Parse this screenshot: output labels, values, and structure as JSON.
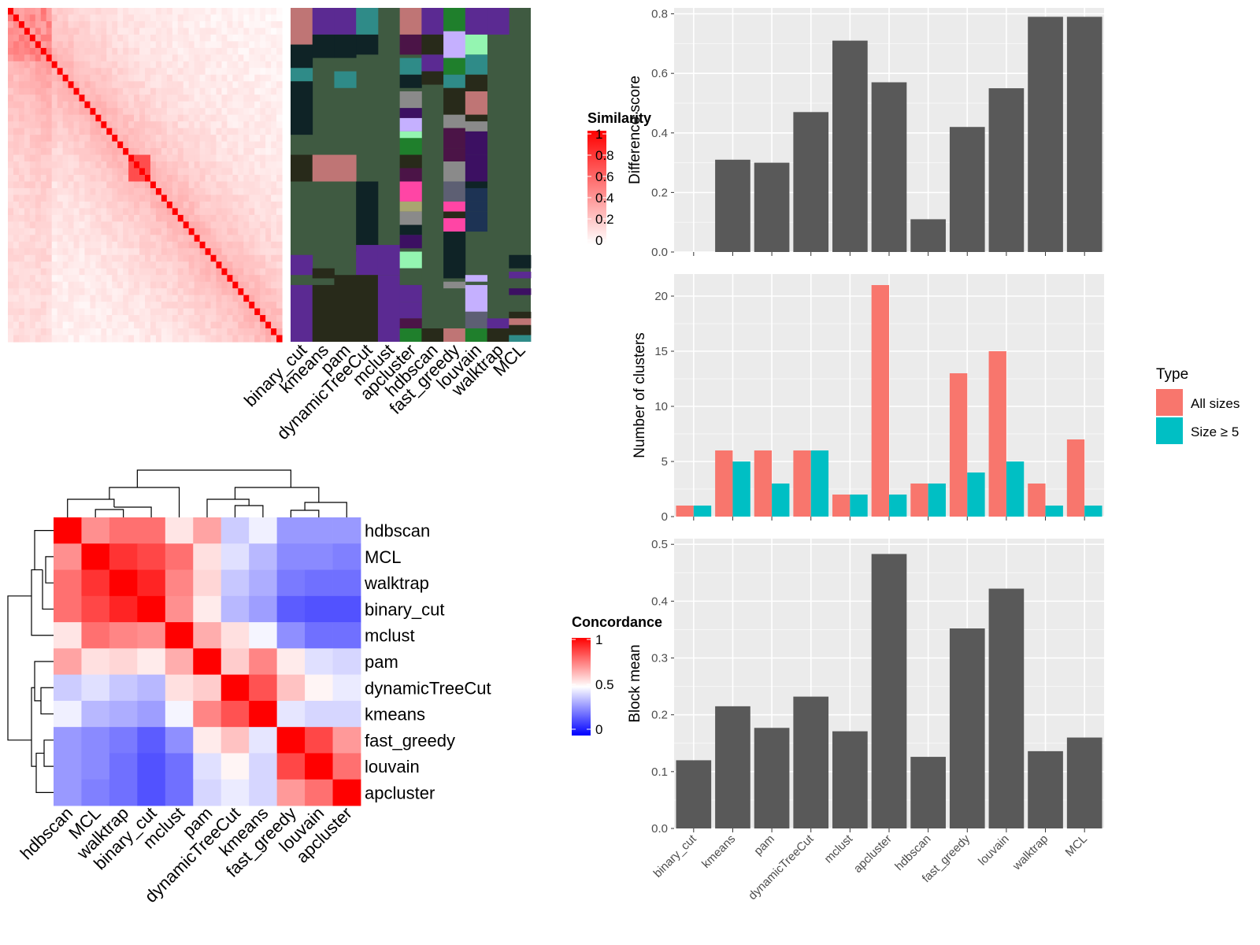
{
  "methods": [
    "binary_cut",
    "kmeans",
    "pam",
    "dynamicTreeCut",
    "mclust",
    "apcluster",
    "hdbscan",
    "fast_greedy",
    "louvain",
    "walktrap",
    "MCL"
  ],
  "panels": {
    "similarity_heatmap": {
      "legend_title": "Similarity",
      "legend_ticks": [
        "1",
        "0.8",
        "0.6",
        "0.4",
        "0.2",
        "0"
      ],
      "palette": [
        "#3f5a41",
        "#bf7575",
        "#5b2a92",
        "#2f8b88",
        "#0f2326",
        "#282a1a",
        "#4b1447",
        "#c5b0ff",
        "#94f5b1",
        "#1f7f2c",
        "#5d5f73",
        "#ff45a5",
        "#3c1062",
        "#8a8a8a",
        "#1d3354",
        "#a9a670"
      ]
    },
    "concordance_heatmap": {
      "legend_title": "Concordance",
      "legend_ticks": [
        "1",
        "0.5",
        "0"
      ],
      "order": [
        "hdbscan",
        "MCL",
        "walktrap",
        "binary_cut",
        "mclust",
        "pam",
        "dynamicTreeCut",
        "kmeans",
        "fast_greedy",
        "louvain",
        "apcluster"
      ]
    },
    "legend": {
      "title": "Type",
      "items": [
        {
          "label": "All sizes",
          "color": "#f8766d"
        },
        {
          "label": "Size ≥ 5",
          "color": "#00bfc4"
        }
      ]
    }
  },
  "chart_data": [
    {
      "type": "heatmap",
      "name_hint": "concordance",
      "rows": [
        "hdbscan",
        "MCL",
        "walktrap",
        "binary_cut",
        "mclust",
        "pam",
        "dynamicTreeCut",
        "kmeans",
        "fast_greedy",
        "louvain",
        "apcluster"
      ],
      "columns": [
        "hdbscan",
        "MCL",
        "walktrap",
        "binary_cut",
        "mclust",
        "pam",
        "dynamicTreeCut",
        "kmeans",
        "fast_greedy",
        "louvain",
        "apcluster"
      ],
      "values": [
        [
          1.0,
          0.72,
          0.78,
          0.78,
          0.55,
          0.68,
          0.4,
          0.47,
          0.3,
          0.3,
          0.3
        ],
        [
          0.72,
          1.0,
          0.9,
          0.86,
          0.78,
          0.56,
          0.44,
          0.36,
          0.27,
          0.27,
          0.25
        ],
        [
          0.78,
          0.9,
          1.0,
          0.93,
          0.74,
          0.58,
          0.39,
          0.34,
          0.24,
          0.22,
          0.22
        ],
        [
          0.78,
          0.86,
          0.93,
          1.0,
          0.72,
          0.54,
          0.36,
          0.31,
          0.18,
          0.16,
          0.16
        ],
        [
          0.55,
          0.78,
          0.74,
          0.72,
          1.0,
          0.66,
          0.56,
          0.48,
          0.28,
          0.22,
          0.22
        ],
        [
          0.68,
          0.56,
          0.58,
          0.54,
          0.66,
          1.0,
          0.6,
          0.74,
          0.54,
          0.44,
          0.42
        ],
        [
          0.4,
          0.44,
          0.39,
          0.36,
          0.56,
          0.6,
          1.0,
          0.84,
          0.62,
          0.52,
          0.46
        ],
        [
          0.47,
          0.36,
          0.34,
          0.31,
          0.48,
          0.74,
          0.84,
          1.0,
          0.45,
          0.42,
          0.42
        ],
        [
          0.3,
          0.27,
          0.24,
          0.18,
          0.28,
          0.54,
          0.62,
          0.45,
          1.0,
          0.86,
          0.7
        ],
        [
          0.3,
          0.27,
          0.22,
          0.16,
          0.22,
          0.44,
          0.52,
          0.42,
          0.86,
          1.0,
          0.78
        ],
        [
          0.3,
          0.25,
          0.22,
          0.16,
          0.22,
          0.42,
          0.46,
          0.42,
          0.7,
          0.78,
          1.0
        ]
      ]
    },
    {
      "type": "bar",
      "categories": [
        "binary_cut",
        "kmeans",
        "pam",
        "dynamicTreeCut",
        "mclust",
        "apcluster",
        "hdbscan",
        "fast_greedy",
        "louvain",
        "walktrap",
        "MCL"
      ],
      "values": [
        0.0,
        0.31,
        0.3,
        0.47,
        0.71,
        0.57,
        0.11,
        0.42,
        0.55,
        0.79,
        0.79
      ],
      "ylabel": "Difference score",
      "ylim": [
        0,
        0.82
      ],
      "yticks": [
        "0.0",
        "0.2",
        "0.4",
        "0.6",
        "0.8"
      ]
    },
    {
      "type": "bar",
      "categories": [
        "binary_cut",
        "kmeans",
        "pam",
        "dynamicTreeCut",
        "mclust",
        "apcluster",
        "hdbscan",
        "fast_greedy",
        "louvain",
        "walktrap",
        "MCL"
      ],
      "series": [
        {
          "name": "All sizes",
          "values": [
            1,
            6,
            6,
            6,
            2,
            21,
            3,
            13,
            15,
            3,
            7
          ]
        },
        {
          "name": "Size ≥ 5",
          "values": [
            1,
            5,
            3,
            6,
            2,
            2,
            3,
            4,
            5,
            1,
            1
          ]
        }
      ],
      "ylabel": "Number of clusters",
      "ylim": [
        0,
        22
      ],
      "yticks": [
        "0",
        "5",
        "10",
        "15",
        "20"
      ],
      "legend": "right"
    },
    {
      "type": "bar",
      "categories": [
        "binary_cut",
        "kmeans",
        "pam",
        "dynamicTreeCut",
        "mclust",
        "apcluster",
        "hdbscan",
        "fast_greedy",
        "louvain",
        "walktrap",
        "MCL"
      ],
      "values": [
        0.12,
        0.215,
        0.177,
        0.232,
        0.171,
        0.483,
        0.126,
        0.352,
        0.422,
        0.136,
        0.16
      ],
      "ylabel": "Block mean",
      "ylim": [
        0,
        0.51
      ],
      "yticks": [
        "0.0",
        "0.1",
        "0.2",
        "0.3",
        "0.4",
        "0.5"
      ]
    }
  ]
}
